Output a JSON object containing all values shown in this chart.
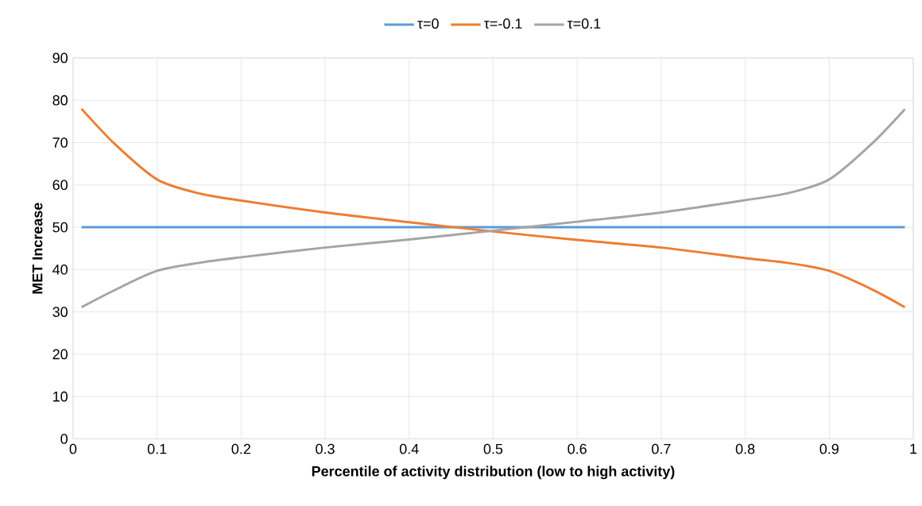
{
  "chart_data": {
    "type": "line",
    "xlabel": "Percentile of activity distribution (low to high activity)",
    "ylabel": "MET Increase",
    "x": [
      0.01,
      0.05,
      0.1,
      0.15,
      0.2,
      0.3,
      0.4,
      0.5,
      0.6,
      0.7,
      0.8,
      0.85,
      0.9,
      0.95,
      0.99
    ],
    "series": [
      {
        "name": "τ=0",
        "color": "#5b9bd5",
        "values": [
          50,
          50,
          50,
          50,
          50,
          50,
          50,
          50,
          50,
          50,
          50,
          50,
          50,
          50,
          50
        ]
      },
      {
        "name": "τ=-0.1",
        "color": "#ed7d31",
        "values": [
          78,
          69.6,
          61.3,
          58,
          56.3,
          53.5,
          51.2,
          49,
          47,
          45.2,
          42.7,
          41.6,
          39.7,
          35.4,
          31.1
        ]
      },
      {
        "name": "τ=0.1",
        "color": "#a5a5a5",
        "values": [
          31.1,
          35.2,
          39.7,
          41.6,
          42.9,
          45.2,
          47.1,
          49.2,
          51.3,
          53.5,
          56.4,
          58,
          61.3,
          69.6,
          77.9
        ]
      }
    ],
    "xlim": [
      0,
      1
    ],
    "xticks": [
      0,
      0.1,
      0.2,
      0.3,
      0.4,
      0.5,
      0.6,
      0.7,
      0.8,
      0.9,
      1
    ],
    "ylim": [
      0,
      90
    ],
    "yticks": [
      0,
      10,
      20,
      30,
      40,
      50,
      60,
      70,
      80,
      90
    ],
    "grid": true,
    "legend": "top",
    "marker": "none",
    "line_style": "solid"
  }
}
